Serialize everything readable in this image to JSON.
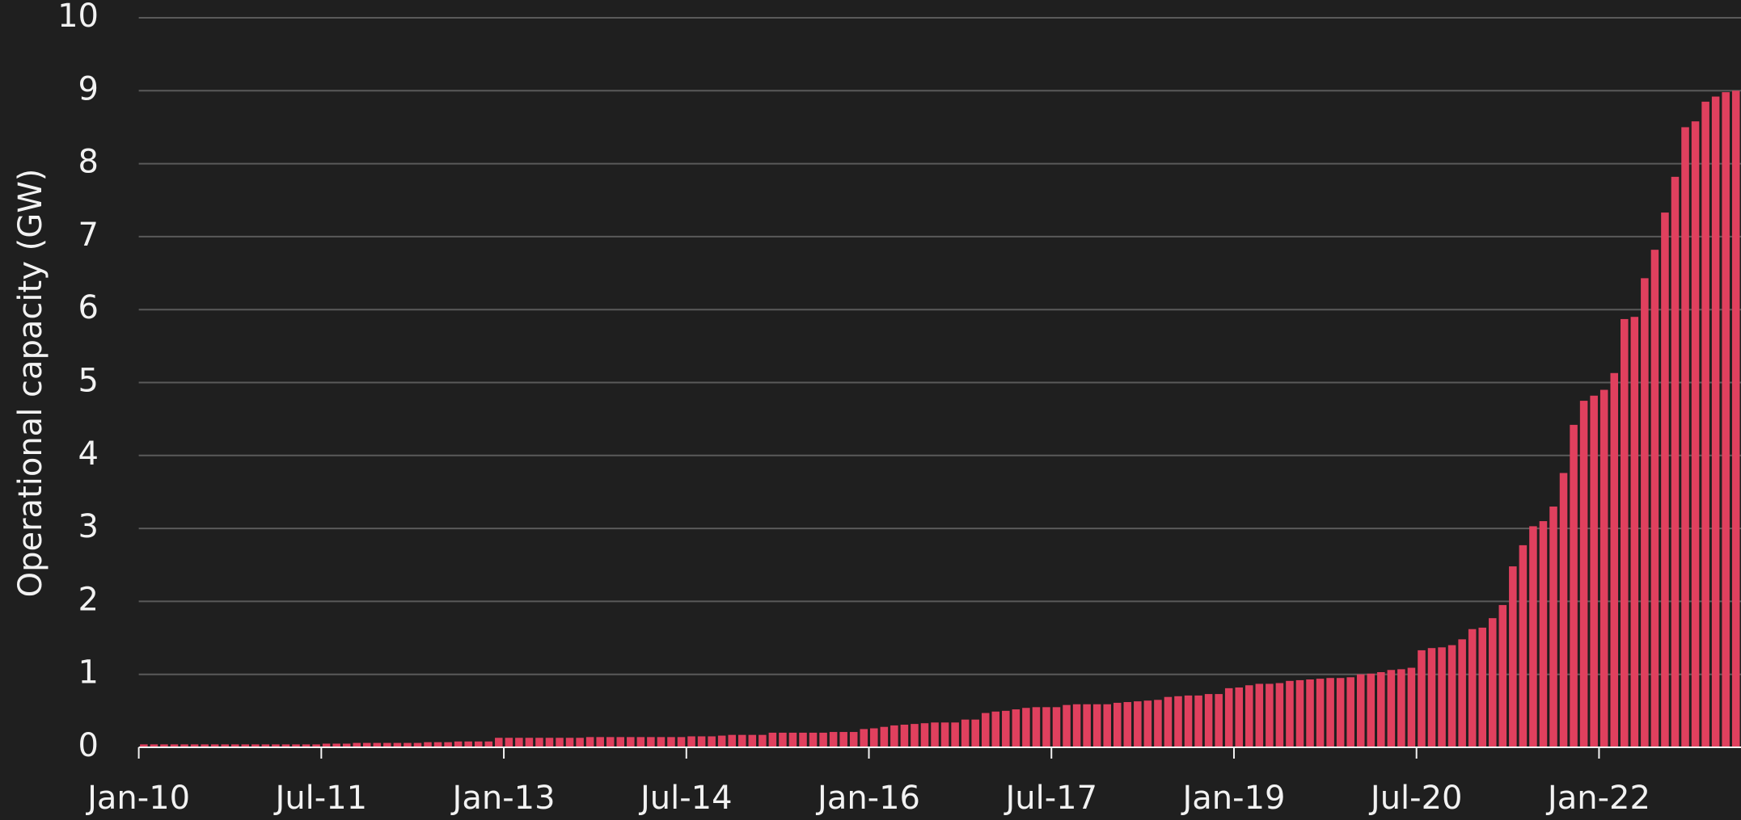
{
  "chart_data": {
    "type": "bar",
    "y_label": "Operational capacity (GW)",
    "categories": [
      "Jan-10",
      null,
      null,
      null,
      null,
      null,
      null,
      null,
      null,
      null,
      null,
      null,
      null,
      null,
      null,
      null,
      null,
      null,
      "Jul-11",
      null,
      null,
      null,
      null,
      null,
      null,
      null,
      null,
      null,
      null,
      null,
      null,
      null,
      null,
      null,
      null,
      null,
      "Jan-13",
      null,
      null,
      null,
      null,
      null,
      null,
      null,
      null,
      null,
      null,
      null,
      null,
      null,
      null,
      null,
      null,
      null,
      "Jul-14",
      null,
      null,
      null,
      null,
      null,
      null,
      null,
      null,
      null,
      null,
      null,
      null,
      null,
      null,
      null,
      null,
      null,
      "Jan-16",
      null,
      null,
      null,
      null,
      null,
      null,
      null,
      null,
      null,
      null,
      null,
      null,
      null,
      null,
      null,
      null,
      null,
      "Jul-17",
      null,
      null,
      null,
      null,
      null,
      null,
      null,
      null,
      null,
      null,
      null,
      null,
      null,
      null,
      null,
      null,
      null,
      "Jan-19",
      null,
      null,
      null,
      null,
      null,
      null,
      null,
      null,
      null,
      null,
      null,
      null,
      null,
      null,
      null,
      null,
      null,
      "Jul-20",
      null,
      null,
      null,
      null,
      null,
      null,
      null,
      null,
      null,
      null,
      null,
      null,
      null,
      null,
      null,
      null,
      null,
      "Jan-22",
      null,
      null,
      null,
      null,
      null,
      null,
      null,
      null,
      null,
      null,
      null,
      null,
      null
    ],
    "values": [
      0.04,
      0.04,
      0.04,
      0.04,
      0.04,
      0.04,
      0.04,
      0.04,
      0.04,
      0.04,
      0.04,
      0.04,
      0.04,
      0.04,
      0.04,
      0.04,
      0.04,
      0.04,
      0.05,
      0.05,
      0.05,
      0.06,
      0.06,
      0.06,
      0.06,
      0.06,
      0.06,
      0.06,
      0.07,
      0.07,
      0.07,
      0.08,
      0.08,
      0.08,
      0.08,
      0.13,
      0.13,
      0.13,
      0.13,
      0.13,
      0.13,
      0.13,
      0.13,
      0.13,
      0.14,
      0.14,
      0.14,
      0.14,
      0.14,
      0.14,
      0.14,
      0.14,
      0.14,
      0.14,
      0.15,
      0.15,
      0.15,
      0.16,
      0.17,
      0.17,
      0.17,
      0.17,
      0.2,
      0.2,
      0.2,
      0.2,
      0.2,
      0.2,
      0.21,
      0.21,
      0.21,
      0.25,
      0.26,
      0.28,
      0.3,
      0.31,
      0.32,
      0.33,
      0.34,
      0.34,
      0.34,
      0.38,
      0.38,
      0.47,
      0.49,
      0.5,
      0.52,
      0.54,
      0.55,
      0.55,
      0.55,
      0.58,
      0.59,
      0.59,
      0.59,
      0.59,
      0.61,
      0.62,
      0.63,
      0.64,
      0.65,
      0.69,
      0.7,
      0.71,
      0.71,
      0.73,
      0.73,
      0.81,
      0.82,
      0.85,
      0.87,
      0.87,
      0.88,
      0.91,
      0.92,
      0.93,
      0.94,
      0.95,
      0.95,
      0.96,
      1.0,
      1.01,
      1.03,
      1.06,
      1.07,
      1.09,
      1.33,
      1.36,
      1.37,
      1.4,
      1.48,
      1.62,
      1.64,
      1.77,
      1.95,
      2.48,
      2.77,
      3.03,
      3.1,
      3.3,
      3.76,
      4.42,
      4.75,
      4.82,
      4.9,
      5.13,
      5.87,
      5.9,
      6.43,
      6.82,
      7.33,
      7.82,
      8.5,
      8.58,
      8.85,
      8.92,
      8.98,
      9.0
    ],
    "color": "#e0405e",
    "ylim": [
      0,
      10
    ],
    "yticks": [
      0,
      1,
      2,
      3,
      4,
      5,
      6,
      7,
      8,
      9,
      10
    ],
    "grid": true
  }
}
